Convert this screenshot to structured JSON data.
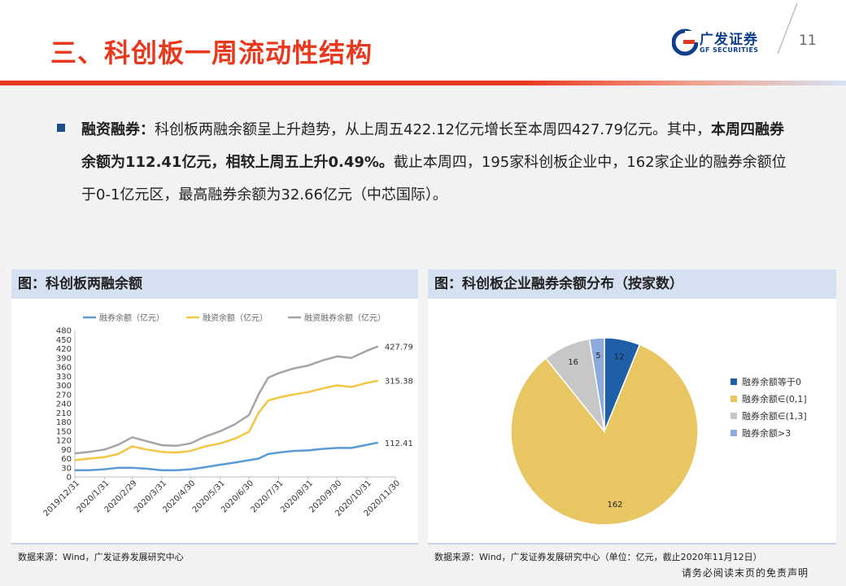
{
  "header": {
    "title": "三、科创板一周流动性结构",
    "logo_cn": "广发证券",
    "logo_en": "GF SECURITIES",
    "page_number": "11"
  },
  "summary": {
    "label": "融资融券：",
    "text_1": "科创板两融余额呈上升趋势，从上周五422.12亿元增长至本周四427.79亿元。其中，",
    "bold": "本周四融券余额为112.41亿元，相较上周五上升0.49%。",
    "text_2": "截止本周四，195家科创板企业中，162家企业的融券余额位于0-1亿元区，最高融券余额为32.66亿元（中芯国际）。"
  },
  "left_panel": {
    "title": "图：科创板两融余额",
    "source": "数据来源：Wind，广发证券发展研究中心"
  },
  "right_panel": {
    "title": "图：科创板企业融券余额分布（按家数）",
    "source": "数据来源：Wind，广发证券发展研究中心（单位：亿元，截止2020年11月12日）"
  },
  "disclaimer": "请务必阅读末页的免责声明",
  "chart_data": [
    {
      "type": "line",
      "title": "",
      "xlabel": "",
      "ylabel": "",
      "ylim": [
        0,
        480
      ],
      "yticks": [
        0,
        30,
        60,
        90,
        120,
        150,
        180,
        210,
        240,
        270,
        300,
        330,
        360,
        390,
        420,
        450,
        480
      ],
      "grid": false,
      "legend_position": "top",
      "x_tick_labels": [
        "2019/12/31",
        "2020/1/31",
        "2020/2/29",
        "2020/3/31",
        "2020/4/30",
        "2020/5/31",
        "2020/6/30",
        "2020/7/31",
        "2020/8/31",
        "2020/9/30",
        "2020/10/31",
        "2020/11/30"
      ],
      "x": [
        "2019/12/31",
        "2020/1/15",
        "2020/1/31",
        "2020/2/14",
        "2020/2/29",
        "2020/3/15",
        "2020/3/31",
        "2020/4/15",
        "2020/4/30",
        "2020/5/15",
        "2020/5/31",
        "2020/6/15",
        "2020/6/30",
        "2020/7/10",
        "2020/7/20",
        "2020/7/31",
        "2020/8/15",
        "2020/8/31",
        "2020/9/15",
        "2020/9/30",
        "2020/10/15",
        "2020/10/31",
        "2020/11/12"
      ],
      "series": [
        {
          "name": "融券余额（亿元）",
          "color": "#5b9bd5",
          "end_label": "112.41",
          "values": [
            22,
            22,
            25,
            30,
            30,
            27,
            22,
            22,
            25,
            32,
            40,
            47,
            55,
            60,
            75,
            80,
            85,
            87,
            92,
            95,
            95,
            105,
            112.41
          ]
        },
        {
          "name": "融资余额（亿元）",
          "color": "#f2c744",
          "end_label": "315.38",
          "values": [
            55,
            60,
            65,
            75,
            100,
            90,
            82,
            80,
            85,
            100,
            110,
            125,
            148,
            210,
            250,
            260,
            270,
            278,
            290,
            300,
            295,
            308,
            315.38
          ]
        },
        {
          "name": "融资融券余额（亿元）",
          "color": "#a5a5a5",
          "end_label": "427.79",
          "values": [
            77,
            82,
            90,
            105,
            130,
            117,
            104,
            102,
            110,
            132,
            150,
            172,
            203,
            270,
            325,
            340,
            355,
            365,
            382,
            395,
            390,
            413,
            427.79
          ]
        }
      ]
    },
    {
      "type": "pie",
      "title": "",
      "legend_position": "right",
      "slices": [
        {
          "label": "融券余额等于0",
          "value": 12,
          "color": "#1f5fa8"
        },
        {
          "label": "融券余额∈(0,1]",
          "value": 162,
          "color": "#e8c662"
        },
        {
          "label": "融券余额∈(1,3]",
          "value": 16,
          "color": "#c7c7c7"
        },
        {
          "label": "融券余额>3",
          "value": 5,
          "color": "#8eaadb"
        }
      ]
    }
  ]
}
